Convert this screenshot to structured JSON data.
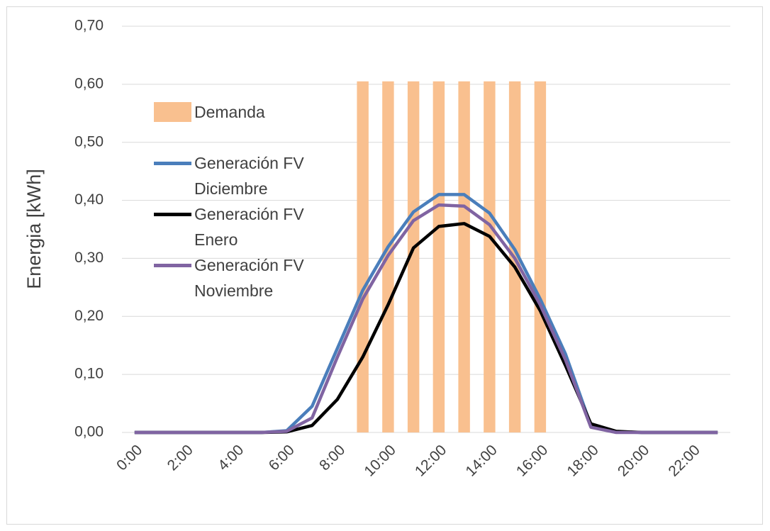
{
  "chart_data": {
    "type": "bar-line",
    "y_label": "Energia [kWh]",
    "categories": [
      "0:00",
      null,
      "2:00",
      null,
      "4:00",
      null,
      "6:00",
      null,
      "8:00",
      null,
      "10:00",
      null,
      "12:00",
      null,
      "14:00",
      null,
      "16:00",
      null,
      "18:00",
      null,
      "20:00",
      null,
      "22:00",
      null
    ],
    "ylim": [
      0,
      0.7
    ],
    "yticks": [
      {
        "value": 0,
        "label": "0,00"
      },
      {
        "value": 0.1,
        "label": "0,10"
      },
      {
        "value": 0.2,
        "label": "0,20"
      },
      {
        "value": 0.3,
        "label": "0,30"
      },
      {
        "value": 0.4,
        "label": "0,40"
      },
      {
        "value": 0.5,
        "label": "0,50"
      },
      {
        "value": 0.6,
        "label": "0,60"
      },
      {
        "value": 0.7,
        "label": "0,70"
      }
    ],
    "grid": true,
    "legend": "upper-left",
    "series": [
      {
        "name": "Demanda",
        "kind": "bar",
        "color": "#f9c08f",
        "values": [
          0,
          0,
          0,
          0,
          0,
          0,
          0,
          0,
          0,
          0.605,
          0.605,
          0.605,
          0.605,
          0.605,
          0.605,
          0.605,
          0.605,
          0,
          0,
          0,
          0,
          0,
          0,
          0
        ]
      },
      {
        "name": "Generación FV Diciembre",
        "kind": "line",
        "color": "#4a7ebb",
        "values": [
          0,
          0,
          0,
          0,
          0,
          0,
          0.003,
          0.045,
          0.145,
          0.245,
          0.32,
          0.38,
          0.41,
          0.41,
          0.378,
          0.315,
          0.23,
          0.135,
          0.012,
          0.001,
          0,
          0,
          0,
          0
        ]
      },
      {
        "name": "Generación FV Enero",
        "kind": "line",
        "color": "#000000",
        "values": [
          0,
          0,
          0,
          0,
          0,
          0,
          0.001,
          0.012,
          0.057,
          0.13,
          0.22,
          0.318,
          0.355,
          0.36,
          0.338,
          0.285,
          0.21,
          0.115,
          0.015,
          0.002,
          0,
          0,
          0,
          0
        ]
      },
      {
        "name": "Generación FV Noviembre",
        "kind": "line",
        "color": "#8064a2",
        "values": [
          0,
          0,
          0,
          0,
          0,
          0,
          0.002,
          0.025,
          0.13,
          0.23,
          0.305,
          0.365,
          0.392,
          0.39,
          0.358,
          0.3,
          0.22,
          0.125,
          0.009,
          0,
          0,
          0,
          0,
          0
        ]
      }
    ]
  }
}
